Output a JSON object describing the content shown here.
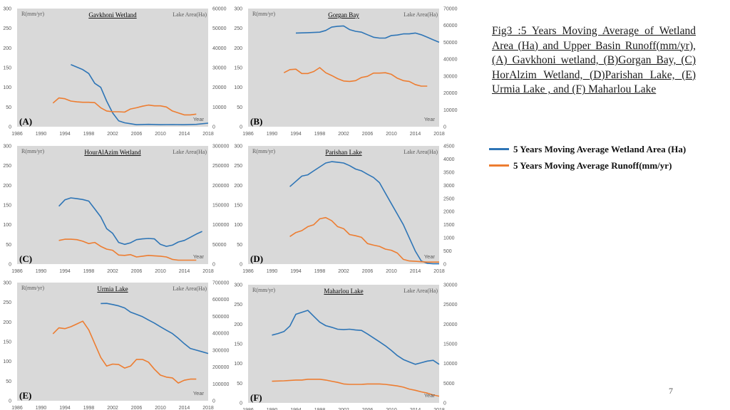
{
  "caption": "Fig3 :5 Years Moving Average of Wetland Area (Ha) and Upper Basin Runoff(mm/yr), (A) Gavkhoni wetland, (B)Gorgan Bay, (C) HorAlzim Wetland, (D)Parishan Lake, (E) Urmia Lake , and (F) Maharlou Lake",
  "legend": {
    "area_label": "5 Years Moving Average Wetland Area (Ha)",
    "runoff_label": "5 Years Moving Average Runoff(mm/yr)"
  },
  "page_number": "7",
  "colors": {
    "area": "#2e75b6",
    "runoff": "#ed7d31",
    "plot_bg": "#d9d9d9",
    "axis_text": "#595959"
  },
  "chart_data": [
    {
      "type": "line",
      "panel_label": "(A)",
      "title": "Gavkhoni Wetland",
      "ylabel_left": "R(mm/yr)",
      "ylabel_right": "Lake Area(Ha)",
      "xlabel": "Year",
      "xlim": [
        1986,
        2018
      ],
      "xticks": [
        1986,
        1990,
        1994,
        1998,
        2002,
        2006,
        2010,
        2014,
        2018
      ],
      "ylim_left": [
        0,
        300
      ],
      "yticks_left": [
        0,
        50,
        100,
        150,
        200,
        250,
        300
      ],
      "ylim_right": [
        0,
        60000
      ],
      "yticks_right": [
        0,
        10000,
        20000,
        30000,
        40000,
        50000,
        60000
      ],
      "series": [
        {
          "name": "5 Years Moving Average Wetland Area (Ha)",
          "axis": "right",
          "x": [
            1995,
            1997,
            1998,
            1999,
            2000,
            2001,
            2002,
            2003,
            2004,
            2005,
            2006,
            2008,
            2010,
            2012,
            2014,
            2016,
            2018
          ],
          "values": [
            31500,
            29000,
            27000,
            22000,
            20000,
            13000,
            7000,
            3000,
            2000,
            1500,
            1000,
            1200,
            1000,
            1100,
            1000,
            1200,
            1800
          ]
        },
        {
          "name": "5 Years Moving Average Runoff(mm/yr)",
          "axis": "left",
          "x": [
            1992,
            1993,
            1994,
            1995,
            1996,
            1997,
            1998,
            1999,
            2000,
            2001,
            2002,
            2003,
            2004,
            2005,
            2006,
            2007,
            2008,
            2009,
            2010,
            2011,
            2012,
            2013,
            2014,
            2015,
            2016
          ],
          "values": [
            60,
            73,
            71,
            65,
            63,
            62,
            62,
            61,
            48,
            40,
            38,
            38,
            37,
            45,
            48,
            52,
            55,
            53,
            53,
            50,
            40,
            35,
            30,
            30,
            32
          ]
        }
      ]
    },
    {
      "type": "line",
      "panel_label": "(B)",
      "title": "Gorgan Bay",
      "ylabel_left": "R(mm/yr)",
      "ylabel_right": "Lake Area(Ha)",
      "xlabel": "Year",
      "xlim": [
        1986,
        2018
      ],
      "xticks": [
        1986,
        1990,
        1994,
        1998,
        2002,
        2006,
        2010,
        2014,
        2018
      ],
      "ylim_left": [
        0,
        300
      ],
      "yticks_left": [
        0,
        50,
        100,
        150,
        200,
        250,
        300
      ],
      "ylim_right": [
        0,
        70000
      ],
      "yticks_right": [
        0,
        10000,
        20000,
        30000,
        40000,
        50000,
        60000,
        70000
      ],
      "series": [
        {
          "name": "5 Years Moving Average Wetland Area (Ha)",
          "axis": "right",
          "x": [
            1994,
            1996,
            1998,
            1999,
            2000,
            2001,
            2002,
            2003,
            2004,
            2005,
            2006,
            2007,
            2008,
            2009,
            2010,
            2011,
            2012,
            2013,
            2014,
            2015,
            2016,
            2017,
            2018
          ],
          "values": [
            55500,
            55700,
            56000,
            57000,
            59000,
            59500,
            59700,
            57500,
            56500,
            56000,
            54500,
            53000,
            52500,
            52500,
            54000,
            54300,
            55000,
            55000,
            55500,
            54500,
            53000,
            51500,
            50000
          ]
        },
        {
          "name": "5 Years Moving Average Runoff(mm/yr)",
          "axis": "left",
          "x": [
            1992,
            1993,
            1994,
            1995,
            1996,
            1997,
            1998,
            1999,
            2000,
            2001,
            2002,
            2003,
            2004,
            2005,
            2006,
            2007,
            2008,
            2009,
            2010,
            2011,
            2012,
            2013,
            2014,
            2015,
            2016
          ],
          "values": [
            137,
            145,
            146,
            135,
            135,
            140,
            150,
            137,
            130,
            122,
            116,
            115,
            117,
            125,
            128,
            136,
            136,
            137,
            133,
            123,
            117,
            115,
            107,
            103,
            103
          ]
        }
      ]
    },
    {
      "type": "line",
      "panel_label": "(C)",
      "title": "HourAlAzim Wetland",
      "ylabel_left": "R(mm/yr)",
      "ylabel_right": "Lake Area(Ha)",
      "xlabel": "Year",
      "xlim": [
        1986,
        2018
      ],
      "xticks": [
        1986,
        1990,
        1994,
        1998,
        2002,
        2006,
        2010,
        2014,
        2018
      ],
      "ylim_left": [
        0,
        300
      ],
      "yticks_left": [
        0,
        50,
        100,
        150,
        200,
        250,
        300
      ],
      "ylim_right": [
        0,
        300000
      ],
      "yticks_right": [
        0,
        50000,
        100000,
        150000,
        200000,
        250000,
        300000
      ],
      "series": [
        {
          "name": "5 Years Moving Average Wetland Area (Ha)",
          "axis": "right",
          "x": [
            1993,
            1994,
            1995,
            1996,
            1997,
            1998,
            1999,
            2000,
            2001,
            2002,
            2003,
            2004,
            2005,
            2006,
            2007,
            2008,
            2009,
            2010,
            2011,
            2012,
            2013,
            2014,
            2015,
            2016,
            2017
          ],
          "values": [
            147000,
            163000,
            168000,
            166000,
            164000,
            160000,
            140000,
            120000,
            90000,
            78000,
            55000,
            50000,
            54000,
            62000,
            64000,
            65000,
            64000,
            50000,
            45000,
            48000,
            56000,
            60000,
            68000,
            76000,
            83000
          ]
        },
        {
          "name": "5 Years Moving Average Runoff(mm/yr)",
          "axis": "left",
          "x": [
            1993,
            1994,
            1995,
            1996,
            1997,
            1998,
            1999,
            2000,
            2001,
            2002,
            2003,
            2004,
            2005,
            2006,
            2007,
            2008,
            2009,
            2010,
            2011,
            2012,
            2013,
            2014,
            2015,
            2016
          ],
          "values": [
            60,
            63,
            63,
            62,
            58,
            52,
            55,
            45,
            38,
            35,
            23,
            22,
            24,
            18,
            20,
            22,
            21,
            20,
            18,
            12,
            10,
            10,
            10,
            10
          ]
        }
      ]
    },
    {
      "type": "line",
      "panel_label": "(D)",
      "title": "Parishan Lake",
      "ylabel_left": "R(mm/yr)",
      "ylabel_right": "Lake Area(Ha)",
      "xlabel": "Year",
      "xlim": [
        1986,
        2018
      ],
      "xticks": [
        1986,
        1990,
        1994,
        1998,
        2002,
        2006,
        2010,
        2014,
        2018
      ],
      "ylim_left": [
        0,
        300
      ],
      "yticks_left": [
        0,
        50,
        100,
        150,
        200,
        250,
        300
      ],
      "ylim_right": [
        0,
        4500
      ],
      "yticks_right": [
        0,
        500,
        1000,
        1500,
        2000,
        2500,
        3000,
        3500,
        4000,
        4500
      ],
      "series": [
        {
          "name": "5 Years Moving Average Wetland Area (Ha)",
          "axis": "right",
          "x": [
            1993,
            1994,
            1995,
            1996,
            1997,
            1998,
            1999,
            2000,
            2001,
            2002,
            2003,
            2004,
            2005,
            2006,
            2007,
            2008,
            2009,
            2010,
            2011,
            2012,
            2013,
            2014,
            2015,
            2016,
            2017,
            2018
          ],
          "values": [
            2950,
            3150,
            3350,
            3400,
            3550,
            3700,
            3850,
            3900,
            3880,
            3850,
            3750,
            3620,
            3550,
            3420,
            3300,
            3100,
            2700,
            2300,
            1900,
            1500,
            1000,
            500,
            120,
            30,
            10,
            10
          ]
        },
        {
          "name": "5 Years Moving Average Runoff(mm/yr)",
          "axis": "left",
          "x": [
            1993,
            1994,
            1995,
            1996,
            1997,
            1998,
            1999,
            2000,
            2001,
            2002,
            2003,
            2004,
            2005,
            2006,
            2007,
            2008,
            2009,
            2010,
            2011,
            2012,
            2013,
            2014,
            2015,
            2016,
            2017,
            2018
          ],
          "values": [
            70,
            80,
            85,
            95,
            100,
            115,
            118,
            110,
            95,
            90,
            75,
            72,
            68,
            52,
            48,
            45,
            38,
            35,
            28,
            12,
            8,
            7,
            6,
            5,
            5,
            5
          ]
        }
      ]
    },
    {
      "type": "line",
      "panel_label": "(E)",
      "title": "Urmia Lake",
      "ylabel_left": "R(mm/yr)",
      "ylabel_right": "Lake Area(Ha)",
      "xlabel": "Year",
      "xlim": [
        1986,
        2018
      ],
      "xticks": [
        1986,
        1990,
        1994,
        1998,
        2002,
        2006,
        2010,
        2014,
        2018
      ],
      "ylim_left": [
        0,
        300
      ],
      "yticks_left": [
        0,
        50,
        100,
        150,
        200,
        250,
        300
      ],
      "ylim_right": [
        0,
        700000
      ],
      "yticks_right": [
        0,
        100000,
        200000,
        300000,
        400000,
        500000,
        600000,
        700000
      ],
      "series": [
        {
          "name": "5 Years Moving Average Wetland Area (Ha)",
          "axis": "right",
          "x": [
            2000,
            2001,
            2002,
            2003,
            2004,
            2005,
            2006,
            2007,
            2008,
            2009,
            2010,
            2011,
            2012,
            2013,
            2014,
            2015,
            2016,
            2017,
            2018
          ],
          "values": [
            576000,
            577000,
            570000,
            562000,
            550000,
            525000,
            512000,
            498000,
            478000,
            460000,
            438000,
            418000,
            398000,
            370000,
            338000,
            310000,
            300000,
            290000,
            280000
          ]
        },
        {
          "name": "5 Years Moving Average Runoff(mm/yr)",
          "axis": "left",
          "x": [
            1992,
            1993,
            1994,
            1995,
            1996,
            1997,
            1998,
            1999,
            2000,
            2001,
            2002,
            2003,
            2004,
            2005,
            2006,
            2007,
            2008,
            2009,
            2010,
            2011,
            2012,
            2013,
            2014,
            2015,
            2016
          ],
          "values": [
            170,
            185,
            183,
            188,
            195,
            202,
            180,
            145,
            110,
            88,
            93,
            92,
            83,
            88,
            105,
            105,
            98,
            80,
            65,
            60,
            58,
            45,
            52,
            55,
            55
          ]
        }
      ]
    },
    {
      "type": "line",
      "panel_label": "(F)",
      "title": "Maharlou Lake",
      "ylabel_left": "R(mm/yr)",
      "ylabel_right": "Lake Area(Ha)",
      "xlabel": "Year",
      "xlim": [
        1986,
        2018
      ],
      "xticks": [
        1986,
        1990,
        1994,
        1998,
        2002,
        2006,
        2010,
        2014,
        2018
      ],
      "ylim_left": [
        0,
        300
      ],
      "yticks_left": [
        0,
        50,
        100,
        150,
        200,
        250,
        300
      ],
      "ylim_right": [
        0,
        30000
      ],
      "yticks_right": [
        0,
        5000,
        10000,
        15000,
        20000,
        25000,
        30000
      ],
      "series": [
        {
          "name": "5 Years Moving Average Wetland Area (Ha)",
          "axis": "right",
          "x": [
            1990,
            1991,
            1992,
            1993,
            1994,
            1995,
            1996,
            1997,
            1998,
            1999,
            2000,
            2001,
            2002,
            2003,
            2004,
            2005,
            2006,
            2007,
            2008,
            2009,
            2010,
            2011,
            2012,
            2013,
            2014,
            2015,
            2016,
            2017,
            2018
          ],
          "values": [
            17200,
            17600,
            18100,
            19500,
            22500,
            23000,
            23500,
            22000,
            20500,
            19600,
            19200,
            18700,
            18600,
            18700,
            18500,
            18400,
            17500,
            16500,
            15500,
            14500,
            13300,
            12000,
            11000,
            10400,
            9800,
            10200,
            10600,
            10800,
            9800
          ]
        },
        {
          "name": "5 Years Moving Average Runoff(mm/yr)",
          "axis": "left",
          "x": [
            1990,
            1992,
            1994,
            1995,
            1996,
            1997,
            1998,
            1999,
            2000,
            2001,
            2002,
            2003,
            2004,
            2005,
            2006,
            2007,
            2008,
            2009,
            2010,
            2011,
            2012,
            2013,
            2014,
            2015,
            2016,
            2017,
            2018
          ],
          "values": [
            55,
            56,
            58,
            58,
            60,
            60,
            60,
            58,
            55,
            52,
            48,
            47,
            47,
            47,
            48,
            48,
            48,
            47,
            45,
            43,
            40,
            35,
            32,
            28,
            25,
            20,
            17
          ]
        }
      ]
    }
  ]
}
